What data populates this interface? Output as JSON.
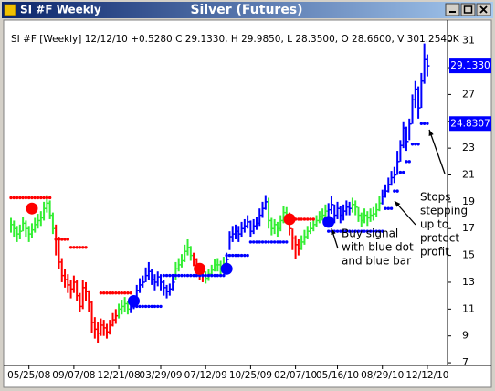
{
  "window": {
    "title": "SI #F Weekly"
  },
  "chart_data": {
    "type": "ohlc",
    "title": "Silver (Futures)",
    "header": "SI #F [Weekly] 12/12/10 +0.5280 C 29.1330, H 29.9850, L 28.3500, O 28.6600, V 301.2540K",
    "categories": [
      null,
      null,
      null,
      null,
      null,
      null,
      "05/25/08",
      null,
      null,
      null,
      null,
      null,
      null,
      null,
      null,
      null,
      null,
      null,
      null,
      null,
      null,
      "09/07/08",
      null,
      null,
      null,
      null,
      null,
      null,
      null,
      null,
      null,
      null,
      null,
      null,
      null,
      null,
      "12/21/08",
      null,
      null,
      null,
      null,
      null,
      null,
      null,
      null,
      null,
      null,
      null,
      null,
      null,
      "03/29/09",
      null,
      null,
      null,
      null,
      null,
      null,
      null,
      null,
      null,
      null,
      null,
      null,
      null,
      null,
      "07/12/09",
      null,
      null,
      null,
      null,
      null,
      null,
      null,
      null,
      null,
      null,
      null,
      null,
      null,
      null,
      "10/25/09",
      null,
      null,
      null,
      null,
      null,
      null,
      null,
      null,
      null,
      null,
      null,
      null,
      null,
      null,
      "02/07/10",
      null,
      null,
      null,
      null,
      null,
      null,
      null,
      null,
      null,
      null,
      null,
      null,
      null,
      "05/16/10",
      null,
      null,
      null,
      null,
      null,
      null,
      null,
      null,
      null,
      null,
      null,
      null,
      null,
      null,
      "08/29/10",
      null,
      null,
      null,
      null,
      null,
      null,
      null,
      null,
      null,
      null,
      null,
      null,
      null,
      null,
      "12/12/10"
    ],
    "high": [
      17.8,
      17.6,
      17.2,
      17.3,
      17.9,
      17.6,
      17.2,
      17.4,
      17.8,
      18.1,
      18.3,
      19.0,
      19.5,
      19.1,
      18.2,
      17.3,
      16.4,
      14.8,
      14.0,
      13.6,
      13.2,
      13.5,
      13.2,
      12.2,
      13.2,
      13.0,
      12.4,
      11.6,
      10.4,
      10.0,
      10.3,
      10.2,
      9.9,
      10.2,
      10.7,
      11.0,
      11.4,
      11.7,
      11.9,
      11.6,
      11.7,
      12.0,
      12.8,
      13.3,
      13.5,
      14.1,
      14.5,
      14.0,
      13.6,
      13.8,
      13.6,
      13.2,
      12.8,
      12.9,
      13.5,
      14.5,
      14.8,
      15.1,
      15.8,
      16.2,
      15.7,
      15.2,
      14.8,
      14.2,
      14.0,
      13.8,
      14.0,
      14.3,
      14.7,
      14.8,
      14.6,
      14.9,
      15.2,
      16.8,
      17.2,
      17.3,
      17.2,
      17.5,
      17.7,
      18.0,
      17.6,
      17.7,
      17.9,
      18.5,
      19.0,
      19.5,
      19.3,
      17.8,
      17.7,
      17.5,
      18.0,
      18.7,
      18.6,
      18.2,
      17.0,
      16.5,
      16.2,
      16.5,
      16.9,
      17.2,
      17.5,
      17.7,
      18.0,
      18.3,
      18.5,
      18.8,
      18.9,
      19.4,
      18.8,
      19.0,
      18.7,
      18.8,
      19.1,
      19.0,
      19.3,
      19.1,
      18.6,
      18.2,
      18.5,
      18.3,
      18.5,
      18.6,
      18.9,
      19.4,
      19.9,
      20.3,
      20.8,
      21.3,
      21.6,
      22.8,
      23.6,
      25.0,
      24.6,
      25.2,
      27.0,
      28.0,
      27.6,
      28.6,
      30.8,
      29.985
    ],
    "low": [
      16.7,
      16.4,
      16.0,
      16.2,
      16.8,
      16.4,
      16.0,
      16.3,
      16.7,
      17.0,
      17.2,
      17.6,
      18.2,
      17.7,
      16.6,
      15.0,
      14.0,
      13.0,
      12.6,
      12.2,
      11.8,
      12.2,
      11.6,
      10.8,
      11.0,
      11.6,
      10.8,
      9.2,
      8.8,
      8.5,
      9.0,
      9.0,
      8.8,
      9.1,
      9.7,
      9.9,
      10.3,
      10.6,
      10.8,
      10.6,
      10.7,
      11.0,
      11.5,
      12.2,
      12.6,
      13.0,
      13.2,
      12.8,
      12.4,
      12.7,
      12.4,
      12.0,
      11.8,
      12.0,
      12.4,
      13.2,
      13.8,
      14.1,
      14.5,
      15.0,
      14.6,
      14.2,
      13.5,
      13.2,
      13.0,
      12.9,
      13.1,
      13.4,
      13.8,
      13.8,
      13.6,
      13.8,
      14.2,
      15.4,
      16.0,
      16.2,
      16.0,
      16.4,
      16.7,
      17.0,
      16.4,
      16.6,
      16.9,
      17.2,
      17.8,
      18.4,
      17.0,
      16.5,
      16.6,
      16.4,
      16.8,
      17.4,
      17.5,
      16.5,
      15.4,
      14.7,
      15.0,
      15.4,
      15.8,
      16.2,
      16.6,
      16.8,
      17.1,
      17.4,
      17.6,
      17.8,
      17.9,
      18.1,
      17.4,
      17.7,
      17.4,
      17.6,
      18.0,
      18.0,
      18.2,
      18.0,
      17.5,
      17.1,
      17.4,
      17.2,
      17.5,
      17.6,
      17.9,
      18.3,
      18.8,
      19.3,
      19.7,
      20.2,
      20.4,
      21.0,
      22.0,
      23.0,
      22.8,
      23.6,
      24.8,
      26.0,
      25.2,
      26.0,
      27.8,
      28.35
    ],
    "close": [
      17.3,
      17.0,
      16.6,
      16.8,
      17.4,
      17.0,
      16.6,
      16.9,
      17.3,
      17.6,
      17.8,
      18.5,
      18.9,
      18.0,
      17.0,
      16.2,
      14.5,
      13.5,
      13.2,
      12.8,
      12.5,
      13.0,
      12.0,
      11.2,
      12.6,
      12.3,
      11.5,
      10.0,
      9.5,
      9.2,
      9.8,
      9.6,
      9.3,
      9.8,
      10.2,
      10.5,
      11.0,
      11.2,
      11.4,
      11.0,
      11.2,
      11.6,
      12.4,
      12.8,
      13.0,
      13.5,
      13.8,
      13.2,
      13.0,
      13.4,
      13.0,
      12.6,
      12.3,
      12.5,
      13.0,
      14.0,
      14.3,
      14.6,
      15.3,
      15.6,
      15.0,
      14.7,
      14.0,
      13.6,
      13.5,
      13.3,
      13.6,
      13.9,
      14.3,
      14.3,
      14.0,
      14.4,
      14.7,
      16.4,
      16.6,
      16.8,
      16.6,
      17.0,
      17.2,
      17.5,
      16.8,
      17.2,
      17.4,
      18.0,
      18.5,
      19.0,
      17.6,
      17.0,
      17.3,
      17.0,
      17.6,
      18.2,
      18.0,
      17.0,
      16.3,
      15.8,
      15.5,
      16.0,
      16.4,
      16.8,
      17.0,
      17.3,
      17.6,
      17.9,
      18.0,
      18.3,
      18.4,
      18.8,
      18.0,
      18.5,
      18.0,
      18.3,
      18.6,
      18.5,
      18.8,
      18.6,
      18.0,
      17.6,
      18.0,
      17.8,
      18.0,
      18.1,
      18.4,
      18.9,
      19.4,
      19.8,
      20.3,
      20.8,
      21.0,
      22.0,
      23.2,
      24.5,
      23.5,
      24.8,
      26.6,
      27.4,
      26.0,
      28.0,
      29.6,
      29.133
    ],
    "bar_colors": [
      "#33ee33",
      "#33ee33",
      "#33ee33",
      "#33ee33",
      "#33ee33",
      "#33ee33",
      "#33ee33",
      "#33ee33",
      "#33ee33",
      "#33ee33",
      "#33ee33",
      "#33ee33",
      "#33ee33",
      "#33ee33",
      "#33ee33",
      "#ff0000",
      "#ff0000",
      "#ff0000",
      "#ff0000",
      "#ff0000",
      "#ff0000",
      "#ff0000",
      "#ff0000",
      "#ff0000",
      "#ff0000",
      "#ff0000",
      "#ff0000",
      "#ff0000",
      "#ff0000",
      "#ff0000",
      "#ff0000",
      "#ff0000",
      "#ff0000",
      "#ff0000",
      "#ff0000",
      "#ff0000",
      "#33ee33",
      "#33ee33",
      "#33ee33",
      "#33ee33",
      "#0000ff",
      "#0000ff",
      "#0000ff",
      "#0000ff",
      "#0000ff",
      "#0000ff",
      "#0000ff",
      "#0000ff",
      "#0000ff",
      "#0000ff",
      "#0000ff",
      "#0000ff",
      "#0000ff",
      "#0000ff",
      "#0000ff",
      "#33ee33",
      "#33ee33",
      "#33ee33",
      "#33ee33",
      "#33ee33",
      "#33ee33",
      "#ff0000",
      "#ff0000",
      "#ff0000",
      "#ff0000",
      "#33ee33",
      "#33ee33",
      "#33ee33",
      "#33ee33",
      "#33ee33",
      "#33ee33",
      "#33ee33",
      "#0000ff",
      "#0000ff",
      "#0000ff",
      "#0000ff",
      "#0000ff",
      "#0000ff",
      "#0000ff",
      "#0000ff",
      "#0000ff",
      "#0000ff",
      "#0000ff",
      "#0000ff",
      "#0000ff",
      "#0000ff",
      "#33ee33",
      "#33ee33",
      "#33ee33",
      "#33ee33",
      "#33ee33",
      "#33ee33",
      "#33ee33",
      "#ff0000",
      "#ff0000",
      "#ff0000",
      "#ff0000",
      "#33ee33",
      "#33ee33",
      "#33ee33",
      "#33ee33",
      "#33ee33",
      "#33ee33",
      "#33ee33",
      "#33ee33",
      "#33ee33",
      "#0000ff",
      "#0000ff",
      "#0000ff",
      "#0000ff",
      "#0000ff",
      "#0000ff",
      "#0000ff",
      "#0000ff",
      "#33ee33",
      "#33ee33",
      "#33ee33",
      "#33ee33",
      "#33ee33",
      "#33ee33",
      "#33ee33",
      "#33ee33",
      "#33ee33",
      "#33ee33",
      "#0000ff",
      "#0000ff",
      "#0000ff",
      "#0000ff",
      "#0000ff",
      "#0000ff",
      "#0000ff",
      "#0000ff",
      "#0000ff",
      "#0000ff",
      "#0000ff",
      "#0000ff",
      "#0000ff",
      "#0000ff",
      "#0000ff",
      "#0000ff"
    ],
    "stops_red": {
      "color": "#ff0000",
      "values": [
        19.3,
        19.3,
        19.3,
        19.3,
        19.3,
        19.3,
        19.3,
        19.3,
        19.3,
        19.3,
        19.3,
        19.3,
        19.3,
        19.3,
        null,
        16.2,
        16.2,
        16.2,
        16.2,
        16.2,
        15.6,
        15.6,
        15.6,
        15.6,
        15.6,
        15.6,
        null,
        null,
        null,
        null,
        12.2,
        12.2,
        12.2,
        12.2,
        12.2,
        12.2,
        12.2,
        12.2,
        12.2,
        12.2,
        12.2,
        null,
        null,
        null,
        null,
        null,
        null,
        null,
        null,
        null,
        null,
        null,
        null,
        null,
        null,
        null,
        null,
        null,
        null,
        null,
        null,
        null,
        null,
        null,
        null,
        null,
        null,
        null,
        null,
        null,
        null,
        null,
        null,
        null,
        null,
        null,
        null,
        null,
        null,
        null,
        null,
        null,
        null,
        null,
        null,
        null,
        null,
        null,
        null,
        null,
        null,
        null,
        null,
        17.7,
        17.7,
        17.7,
        17.7,
        17.7,
        17.7,
        17.7,
        17.7,
        17.7,
        null,
        null,
        null,
        null,
        null,
        null,
        null,
        null,
        null,
        null,
        null,
        null,
        null,
        null,
        null,
        null,
        null,
        null,
        null,
        null,
        null,
        null,
        null,
        null,
        null,
        null,
        null,
        null,
        null,
        null,
        null,
        null,
        null,
        null,
        null,
        null,
        null,
        null
      ]
    },
    "stops_blue": {
      "color": "#0000ff",
      "values": [
        null,
        null,
        null,
        null,
        null,
        null,
        null,
        null,
        null,
        null,
        null,
        null,
        null,
        null,
        null,
        null,
        null,
        null,
        null,
        null,
        null,
        null,
        null,
        null,
        null,
        null,
        null,
        null,
        null,
        null,
        null,
        null,
        null,
        null,
        null,
        null,
        null,
        null,
        null,
        null,
        null,
        11.2,
        11.2,
        11.2,
        11.2,
        11.2,
        11.2,
        11.2,
        11.2,
        11.2,
        11.2,
        13.5,
        13.5,
        13.5,
        13.5,
        13.5,
        13.5,
        13.5,
        13.5,
        13.5,
        13.5,
        13.5,
        13.5,
        13.5,
        13.5,
        13.5,
        13.5,
        13.5,
        13.5,
        13.5,
        13.5,
        13.5,
        15.0,
        15.0,
        15.0,
        15.0,
        15.0,
        15.0,
        15.0,
        15.0,
        16.0,
        16.0,
        16.0,
        16.0,
        16.0,
        16.0,
        16.0,
        16.0,
        16.0,
        16.0,
        16.0,
        16.0,
        16.0,
        null,
        null,
        null,
        null,
        null,
        null,
        null,
        null,
        null,
        null,
        null,
        null,
        null,
        16.8,
        16.8,
        16.8,
        16.8,
        16.8,
        16.8,
        16.8,
        16.8,
        16.8,
        16.8,
        16.8,
        16.8,
        16.8,
        16.8,
        16.8,
        16.8,
        16.8,
        16.8,
        16.8,
        18.5,
        18.5,
        18.5,
        19.8,
        19.8,
        21.2,
        21.2,
        22.0,
        22.0,
        23.3,
        23.3,
        23.3,
        24.8307,
        24.8307,
        24.8307
      ]
    },
    "signals_red": {
      "color": "#ff0000",
      "values": [
        null,
        null,
        null,
        null,
        null,
        null,
        null,
        18.5,
        null,
        null,
        null,
        null,
        null,
        null,
        null,
        null,
        null,
        null,
        null,
        null,
        null,
        null,
        null,
        null,
        null,
        null,
        null,
        null,
        null,
        null,
        null,
        null,
        null,
        null,
        null,
        null,
        null,
        null,
        null,
        null,
        null,
        null,
        null,
        null,
        null,
        null,
        null,
        null,
        null,
        null,
        null,
        null,
        null,
        null,
        null,
        null,
        null,
        null,
        null,
        null,
        null,
        null,
        null,
        14.0,
        null,
        null,
        null,
        null,
        null,
        null,
        null,
        null,
        null,
        null,
        null,
        null,
        null,
        null,
        null,
        null,
        null,
        null,
        null,
        null,
        null,
        null,
        null,
        null,
        null,
        null,
        null,
        null,
        null,
        17.7,
        null,
        null,
        null,
        null,
        null,
        null,
        null,
        null,
        null,
        null,
        null,
        null,
        null,
        null,
        null,
        null,
        null,
        null,
        null,
        null,
        null,
        null,
        null,
        null,
        null,
        null,
        null,
        null,
        null,
        null,
        null,
        null,
        null,
        null,
        null,
        null,
        null,
        null,
        null,
        null,
        null,
        null,
        null,
        null,
        null,
        null
      ]
    },
    "signals_blue": {
      "color": "#0000ff",
      "values": [
        null,
        null,
        null,
        null,
        null,
        null,
        null,
        null,
        null,
        null,
        null,
        null,
        null,
        null,
        null,
        null,
        null,
        null,
        null,
        null,
        null,
        null,
        null,
        null,
        null,
        null,
        null,
        null,
        null,
        null,
        null,
        null,
        null,
        null,
        null,
        null,
        null,
        null,
        null,
        null,
        null,
        11.6,
        null,
        null,
        null,
        null,
        null,
        null,
        null,
        null,
        null,
        null,
        null,
        null,
        null,
        null,
        null,
        null,
        null,
        null,
        null,
        null,
        null,
        null,
        null,
        null,
        null,
        null,
        null,
        null,
        null,
        null,
        14.0,
        null,
        null,
        null,
        null,
        null,
        null,
        null,
        null,
        null,
        null,
        null,
        null,
        null,
        null,
        null,
        null,
        null,
        null,
        null,
        null,
        null,
        null,
        null,
        null,
        null,
        null,
        null,
        null,
        null,
        null,
        null,
        null,
        null,
        17.5,
        null,
        null,
        null,
        null,
        null,
        null,
        null,
        null,
        null,
        null,
        null,
        null,
        null,
        null,
        null,
        null,
        null,
        null,
        null,
        null,
        null,
        null,
        null,
        null,
        null,
        null,
        null,
        null,
        null,
        null,
        null,
        null,
        null
      ]
    },
    "last_price": {
      "value": 29.133,
      "label": "29.1330"
    },
    "ylim": [
      6.8,
      32.0
    ],
    "yticks": [
      7,
      9,
      11,
      13,
      15,
      17,
      19,
      21,
      23,
      25,
      27,
      29,
      31
    ],
    "annotations": [
      {
        "lines": [
          "Buy signal",
          "with blue dot",
          "and blue bar"
        ]
      },
      {
        "lines": [
          "Stops",
          "stepping",
          "up to",
          "protect",
          "profit"
        ]
      }
    ]
  }
}
